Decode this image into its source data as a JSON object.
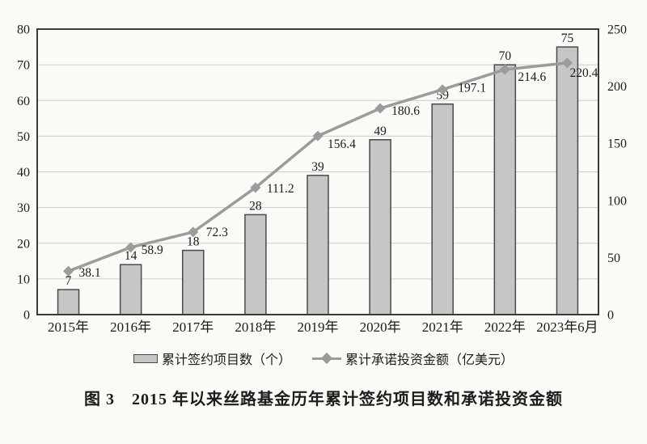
{
  "caption": "图 3　2015 年以来丝路基金历年累计签约项目数和承诺投资金额",
  "chart_data": {
    "type": "combo-bar-line",
    "categories": [
      "2015年",
      "2016年",
      "2017年",
      "2018年",
      "2019年",
      "2020年",
      "2021年",
      "2022年",
      "2023年6月"
    ],
    "series": [
      {
        "name": "累计签约项目数（个）",
        "type": "bar",
        "axis": "left",
        "values": [
          7,
          14,
          18,
          28,
          39,
          49,
          59,
          70,
          75
        ]
      },
      {
        "name": "累计承诺投资金额（亿美元）",
        "type": "line",
        "axis": "right",
        "marker": "diamond",
        "values": [
          38.1,
          58.9,
          72.3,
          111.2,
          156.4,
          180.6,
          197.1,
          214.6,
          220.4
        ]
      }
    ],
    "axes": {
      "left": {
        "min": 0,
        "max": 80,
        "step": 10,
        "ticks": [
          0,
          10,
          20,
          30,
          40,
          50,
          60,
          70,
          80
        ]
      },
      "right": {
        "min": 0,
        "max": 250,
        "step": 50,
        "ticks": [
          0,
          50,
          100,
          150,
          200,
          250
        ]
      }
    },
    "grid": true,
    "data_labels": true,
    "legend_position": "bottom"
  },
  "colors": {
    "background": "#fcfaf7",
    "bar_fill": "#c6c6c6",
    "bar_border": "#4a4a4a",
    "line": "#9b9b9b",
    "grid": "#cccccc",
    "axis_border": "#3a3a3a",
    "text": "#1c1c1c"
  }
}
